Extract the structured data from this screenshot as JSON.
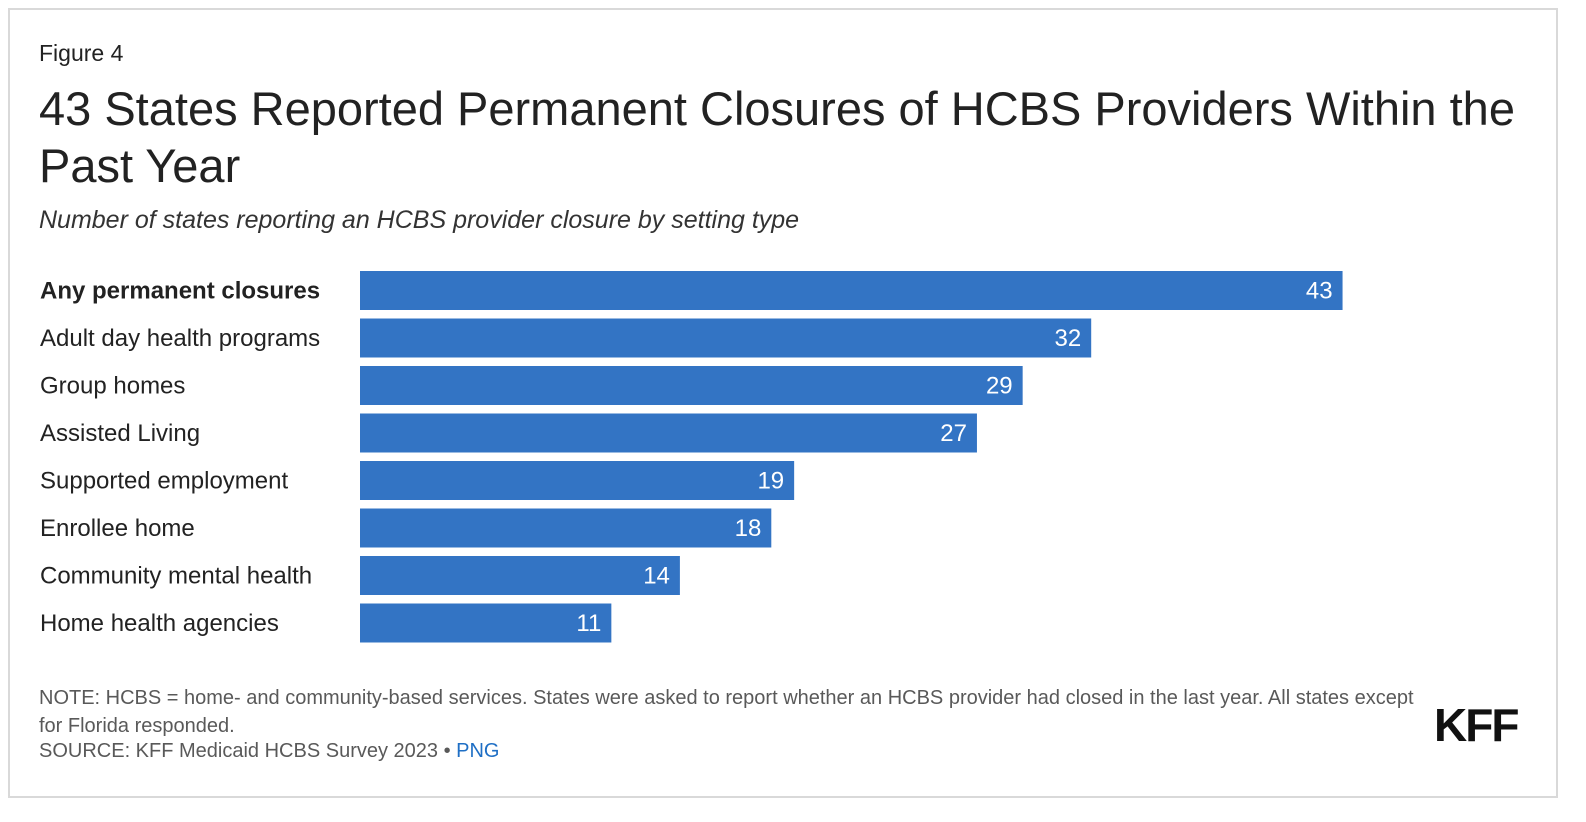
{
  "figure_label": "Figure 4",
  "title": "43 States Reported Permanent Closures of HCBS Providers Within the Past Year",
  "subtitle": "Number of states reporting an HCBS provider closure by setting type",
  "note": "NOTE: HCBS = home- and community-based services. States were asked to report whether an HCBS provider had closed in the last year. All states except for Florida responded.",
  "source_text": "SOURCE: KFF Medicaid HCBS Survey 2023 • ",
  "source_link": "PNG",
  "logo": "KFF",
  "colors": {
    "bar": "#3374c4",
    "link": "#1f6fc5"
  },
  "chart_data": {
    "type": "bar",
    "orientation": "horizontal",
    "title": "43 States Reported Permanent Closures of HCBS Providers Within the Past Year",
    "subtitle": "Number of states reporting an HCBS provider closure by setting type",
    "categories": [
      "Any permanent closures",
      "Adult day health programs",
      "Group homes",
      "Assisted Living",
      "Supported employment",
      "Enrollee home",
      "Community mental health",
      "Home health agencies"
    ],
    "bold_categories": [
      "Any permanent closures"
    ],
    "values": [
      43,
      32,
      29,
      27,
      19,
      18,
      14,
      11
    ],
    "xlim": [
      0,
      50
    ],
    "grid": false,
    "data_labels": true
  }
}
